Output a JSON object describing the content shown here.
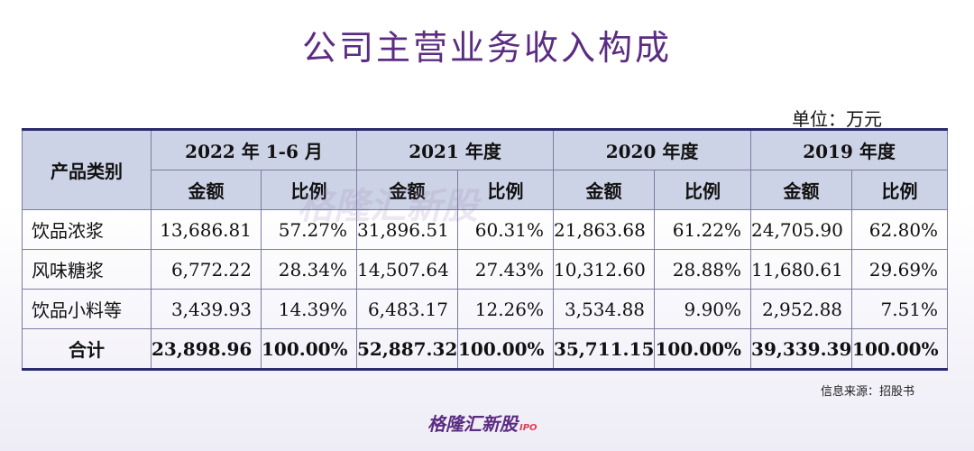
{
  "title": "公司主营业务收入构成",
  "unit": "单位：万元",
  "table": {
    "category_header": "产品类别",
    "years": [
      "2022 年 1-6 月",
      "2021 年度",
      "2020 年度",
      "2019 年度"
    ],
    "amount_label": "金额",
    "ratio_label": "比例",
    "rows": [
      {
        "category": "饮品浓浆",
        "cells": [
          "13,686.81",
          "57.27%",
          "31,896.51",
          "60.31%",
          "21,863.68",
          "61.22%",
          "24,705.90",
          "62.80%"
        ]
      },
      {
        "category": "风味糖浆",
        "cells": [
          "6,772.22",
          "28.34%",
          "14,507.64",
          "27.43%",
          "10,312.60",
          "28.88%",
          "11,680.61",
          "29.69%"
        ]
      },
      {
        "category": "饮品小料等",
        "cells": [
          "3,439.93",
          "14.39%",
          "6,483.17",
          "12.26%",
          "3,534.88",
          "9.90%",
          "2,952.88",
          "7.51%"
        ]
      },
      {
        "category": "合计",
        "cells": [
          "23,898.96",
          "100.00%",
          "52,887.32",
          "100.00%",
          "35,711.15",
          "100.00%",
          "39,339.39",
          "100.00%"
        ]
      }
    ]
  },
  "source": "信息来源：招股书",
  "logo": {
    "text": "格隆汇新股",
    "suffix": "IPO"
  },
  "watermark": "格隆汇新股"
}
